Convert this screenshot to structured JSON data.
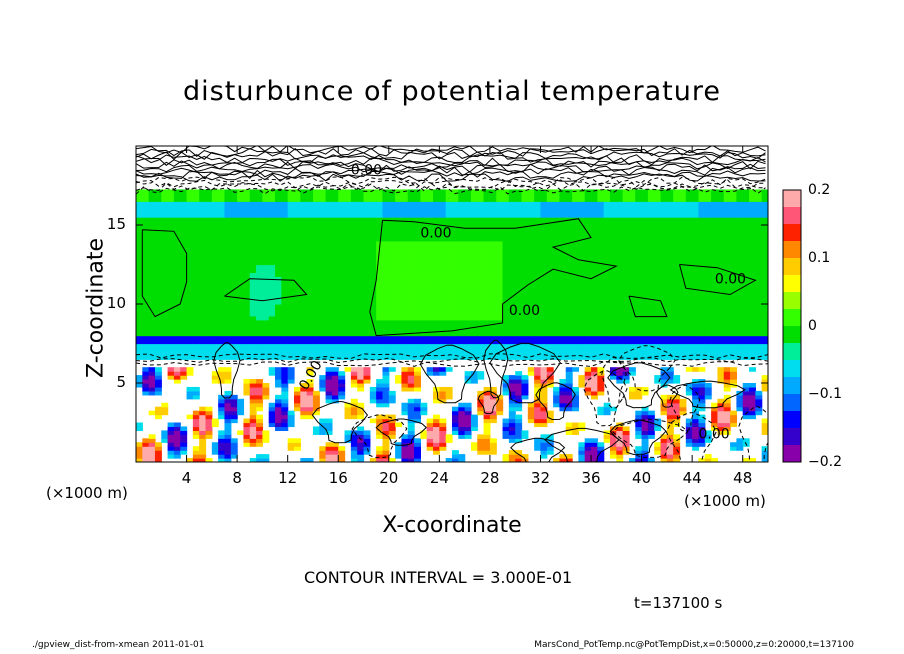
{
  "chart_data": {
    "type": "heatmap",
    "title": "disturbunce of potential temperature",
    "xlabel": "X-coordinate",
    "ylabel": "Z-coordinate",
    "x_unit": "(×1000 m)",
    "xlim": [
      0,
      50
    ],
    "ylim": [
      0,
      20
    ],
    "x_ticks": [
      4,
      8,
      12,
      16,
      20,
      24,
      28,
      32,
      36,
      40,
      44,
      48
    ],
    "y_ticks": [
      5,
      10,
      15
    ],
    "colorbar": {
      "range": [
        -0.2,
        0.2
      ],
      "ticks": [
        "0.2",
        "0.1",
        "0",
        "−0.1",
        "−0.2"
      ],
      "colors": [
        "#8800aa",
        "#3300cc",
        "#0000ff",
        "#0066ff",
        "#00aaff",
        "#00ddee",
        "#00ee99",
        "#00dd00",
        "#33ff00",
        "#99ff00",
        "#ffff00",
        "#ffcc00",
        "#ff8800",
        "#ff2200",
        "#ff5577",
        "#ffaaaa"
      ]
    },
    "contour_labels": [
      "0.00",
      "0.00",
      "0.00",
      "0.00",
      "0.00",
      "0.00"
    ],
    "regions": [
      {
        "band": "upper",
        "z_range": [
          17,
          20
        ],
        "value": "noisy, near 0"
      },
      {
        "band": "cold layer",
        "z_range": [
          15.5,
          16.5
        ],
        "value": -0.08
      },
      {
        "band": "interior",
        "z_range": [
          8,
          15.5
        ],
        "value": 0.0
      },
      {
        "band": "cold layer",
        "z_range": [
          7.3,
          8
        ],
        "value": -0.15
      },
      {
        "band": "convective",
        "z_range": [
          0,
          6.5
        ],
        "value": "mixed -0.2 to 0.2"
      }
    ]
  },
  "texts": {
    "title": "disturbunce of potential temperature",
    "xlabel": "X-coordinate",
    "ylabel": "Z-coordinate",
    "xunit_left": "(×1000 m)",
    "xunit_right": "(×1000 m)",
    "interval": "CONTOUR INTERVAL = 3.000E-01",
    "timestamp": "t=137100 s",
    "footer_left": "./gpview_dist-from-xmean  2011-01-01",
    "footer_right": "MarsCond_PotTemp.nc@PotTempDist,x=0:50000,z=0:20000,t=137100"
  }
}
